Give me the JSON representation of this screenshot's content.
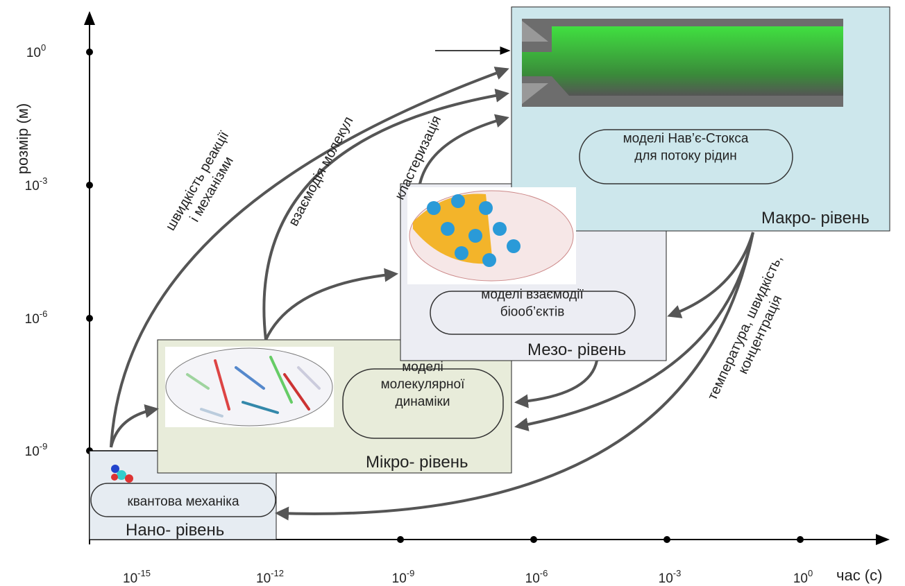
{
  "axes": {
    "y_label": "розмір (м)",
    "x_label": "час (с)",
    "x_ticks": [
      {
        "base": "10",
        "exp": "-15"
      },
      {
        "base": "10",
        "exp": "-12"
      },
      {
        "base": "10",
        "exp": "-9"
      },
      {
        "base": "10",
        "exp": "-6"
      },
      {
        "base": "10",
        "exp": "-3"
      },
      {
        "base": "10",
        "exp": "0"
      }
    ],
    "y_ticks": [
      {
        "base": "10",
        "exp": "0"
      },
      {
        "base": "10",
        "exp": "-3"
      },
      {
        "base": "10",
        "exp": "-6"
      },
      {
        "base": "10",
        "exp": "-9"
      }
    ]
  },
  "levels": [
    {
      "name": "Нано- рівень",
      "model": [
        "квантова механіка"
      ]
    },
    {
      "name": "Мікро- рівень",
      "model": [
        "моделі",
        "молекулярної",
        "динаміки"
      ]
    },
    {
      "name": "Мезо- рівень",
      "model": [
        "моделі взаємодії",
        "біооб’єктів"
      ]
    },
    {
      "name": "Макро- рівень",
      "model": [
        "моделі Нав’є-Стокса",
        "для потоку рідин"
      ]
    }
  ],
  "arrow_labels": [
    [
      "швидкість реакції",
      "і механізми"
    ],
    [
      "взаємодія молекул"
    ],
    [
      "кластеризація"
    ],
    [
      "температура, швидкість,",
      "концентрація"
    ]
  ]
}
